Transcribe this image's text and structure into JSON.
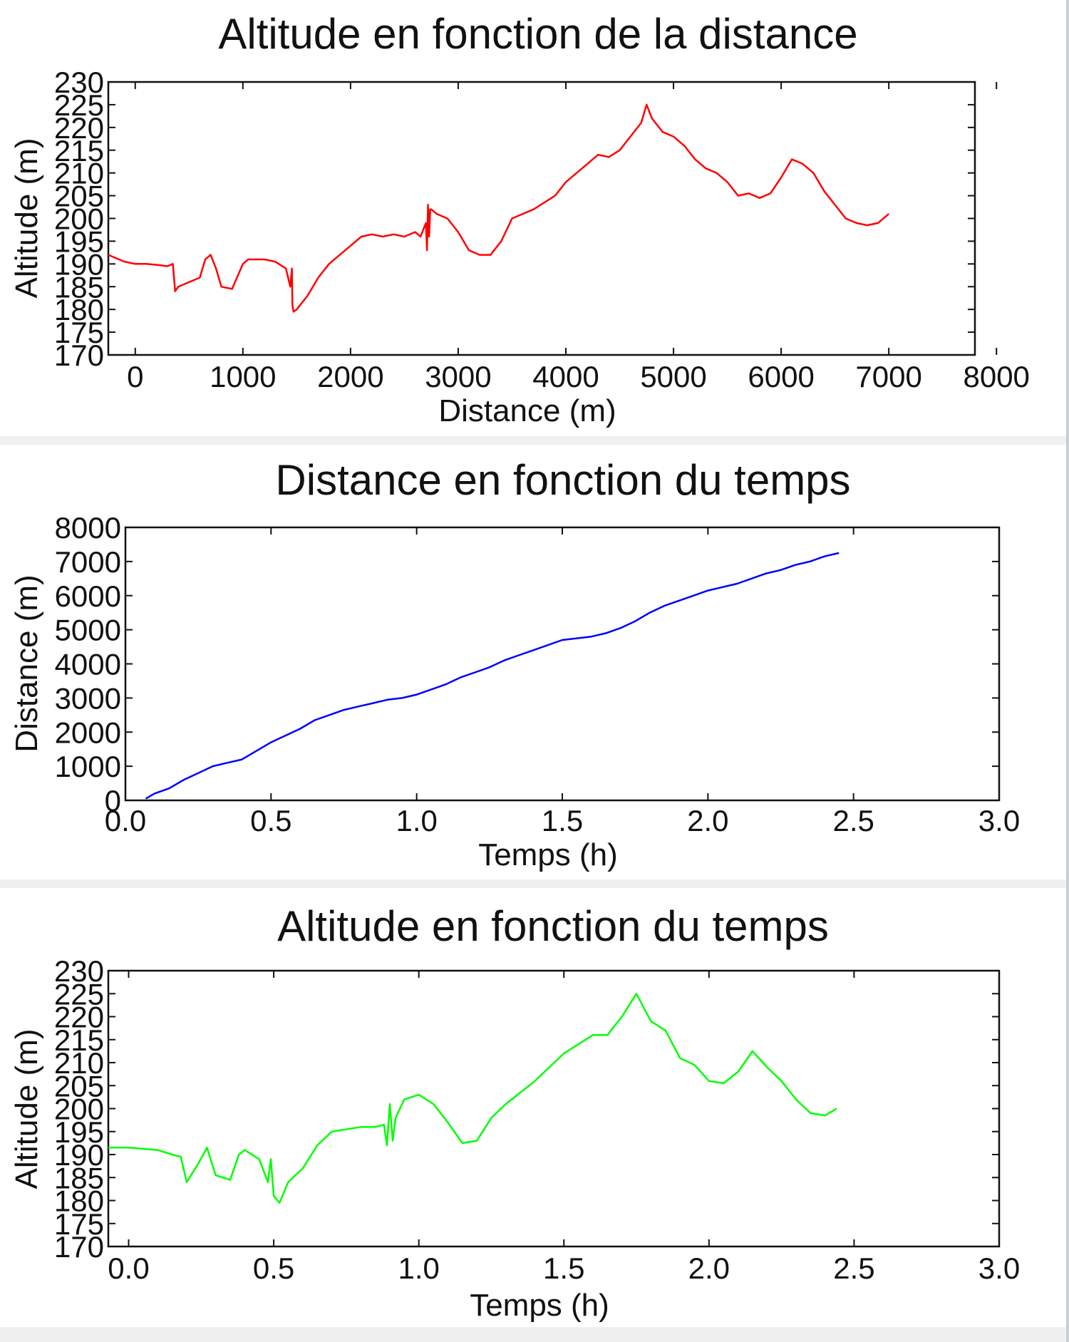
{
  "colors": {
    "page_background": "#ffffff",
    "separator": "#f0f0f0",
    "axes": "#111111"
  },
  "chart_data": [
    {
      "type": "line",
      "title": "Altitude en fonction de la distance",
      "xlabel": "Distance (m)",
      "ylabel": "Altitude (m)",
      "xlim": [
        -250,
        7800
      ],
      "ylim": [
        170,
        230
      ],
      "xticks": [
        0,
        1000,
        2000,
        3000,
        4000,
        5000,
        6000,
        7000,
        8000
      ],
      "yticks": [
        170,
        175,
        180,
        185,
        190,
        195,
        200,
        205,
        210,
        215,
        220,
        225,
        230
      ],
      "grid": false,
      "color": "#ff0000",
      "series": [
        {
          "x": [
            -250,
            -150,
            -100,
            0,
            100,
            200,
            300,
            350,
            370,
            400,
            500,
            600,
            650,
            700,
            750,
            800,
            900,
            1000,
            1050,
            1100,
            1200,
            1300,
            1400,
            1440,
            1455,
            1460,
            1470,
            1500,
            1600,
            1700,
            1800,
            1900,
            2000,
            2100,
            2200,
            2300,
            2400,
            2500,
            2600,
            2650,
            2700,
            2710,
            2720,
            2730,
            2740,
            2750,
            2800,
            2900,
            3000,
            3100,
            3200,
            3300,
            3400,
            3500,
            3600,
            3700,
            3800,
            3900,
            4000,
            4100,
            4200,
            4300,
            4400,
            4500,
            4600,
            4700,
            4750,
            4800,
            4900,
            5000,
            5100,
            5200,
            5300,
            5400,
            5500,
            5600,
            5700,
            5800,
            5900,
            6000,
            6100,
            6200,
            6300,
            6400,
            6500,
            6600,
            6700,
            6800,
            6900,
            7000
          ],
          "y": [
            192,
            191,
            190.5,
            190,
            190,
            189.8,
            189.5,
            190,
            184,
            185,
            186,
            187,
            191,
            192,
            189,
            185,
            184.5,
            190,
            191,
            191,
            191,
            190.5,
            189,
            185,
            189,
            181,
            179.5,
            180,
            183,
            187,
            190,
            192,
            194,
            196,
            196.5,
            196,
            196.5,
            196,
            197,
            196,
            199,
            193,
            203,
            196,
            202,
            202,
            201,
            200,
            197,
            193,
            192,
            192,
            195,
            200,
            201,
            202,
            203.5,
            205,
            208,
            210,
            212,
            214,
            213.5,
            215,
            218,
            221,
            225,
            222,
            219,
            218,
            216,
            213,
            211,
            210,
            208,
            205,
            205.5,
            204.5,
            205.5,
            209,
            213,
            212,
            210,
            206,
            203,
            200,
            199,
            198.5,
            199,
            201
          ]
        }
      ]
    },
    {
      "type": "line",
      "title": "Distance en fonction du temps",
      "xlabel": "Temps (h)",
      "ylabel": "Distance (m)",
      "xlim": [
        0.0,
        3.0
      ],
      "ylim": [
        0,
        8000
      ],
      "xticks": [
        0.0,
        0.5,
        1.0,
        1.5,
        2.0,
        2.5,
        3.0
      ],
      "yticks": [
        0,
        1000,
        2000,
        3000,
        4000,
        5000,
        6000,
        7000,
        8000
      ],
      "grid": false,
      "color": "#0000ff",
      "series": [
        {
          "x": [
            0.07,
            0.1,
            0.15,
            0.2,
            0.25,
            0.3,
            0.35,
            0.4,
            0.45,
            0.5,
            0.55,
            0.6,
            0.65,
            0.7,
            0.75,
            0.8,
            0.85,
            0.9,
            0.95,
            1.0,
            1.05,
            1.1,
            1.15,
            1.2,
            1.25,
            1.3,
            1.35,
            1.4,
            1.45,
            1.5,
            1.55,
            1.6,
            1.65,
            1.7,
            1.75,
            1.8,
            1.85,
            1.9,
            1.95,
            2.0,
            2.05,
            2.1,
            2.15,
            2.2,
            2.25,
            2.3,
            2.35,
            2.4,
            2.45
          ],
          "y": [
            50,
            200,
            350,
            600,
            800,
            1000,
            1100,
            1200,
            1450,
            1700,
            1900,
            2100,
            2350,
            2500,
            2650,
            2750,
            2850,
            2950,
            3000,
            3100,
            3250,
            3400,
            3600,
            3750,
            3900,
            4100,
            4250,
            4400,
            4550,
            4700,
            4750,
            4800,
            4900,
            5050,
            5250,
            5500,
            5700,
            5850,
            6000,
            6150,
            6250,
            6350,
            6500,
            6650,
            6750,
            6900,
            7000,
            7150,
            7250
          ]
        }
      ]
    },
    {
      "type": "line",
      "title": "Altitude en fonction du temps",
      "xlabel": "Temps (h)",
      "ylabel": "Altitude (m)",
      "xlim": [
        -0.07,
        3.0
      ],
      "ylim": [
        170,
        230
      ],
      "xticks": [
        0.0,
        0.5,
        1.0,
        1.5,
        2.0,
        2.5,
        3.0
      ],
      "yticks": [
        170,
        175,
        180,
        185,
        190,
        195,
        200,
        205,
        210,
        215,
        220,
        225,
        230
      ],
      "grid": false,
      "color": "#00ff00",
      "series": [
        {
          "x": [
            -0.07,
            0.0,
            0.1,
            0.15,
            0.18,
            0.2,
            0.24,
            0.27,
            0.3,
            0.35,
            0.38,
            0.4,
            0.45,
            0.48,
            0.49,
            0.5,
            0.52,
            0.55,
            0.6,
            0.65,
            0.7,
            0.8,
            0.85,
            0.88,
            0.89,
            0.9,
            0.91,
            0.92,
            0.95,
            1.0,
            1.05,
            1.1,
            1.15,
            1.2,
            1.25,
            1.3,
            1.35,
            1.4,
            1.45,
            1.5,
            1.55,
            1.6,
            1.65,
            1.7,
            1.75,
            1.8,
            1.85,
            1.9,
            1.95,
            2.0,
            2.05,
            2.1,
            2.15,
            2.2,
            2.25,
            2.3,
            2.35,
            2.4,
            2.44
          ],
          "y": [
            191.5,
            191.5,
            191,
            190,
            189.5,
            184,
            188,
            191.5,
            185.5,
            184.5,
            190,
            191,
            189,
            184,
            189,
            181,
            179.5,
            184,
            187,
            192,
            195,
            196,
            196,
            196.5,
            192,
            201,
            193,
            198,
            202,
            203,
            201,
            197,
            192.5,
            193,
            198,
            201,
            203.5,
            206,
            209,
            212,
            214,
            216,
            216,
            220,
            225,
            219,
            217,
            211,
            209.5,
            206,
            205.5,
            208,
            212.5,
            209,
            206,
            202,
            199,
            198.5,
            200
          ]
        }
      ]
    }
  ]
}
